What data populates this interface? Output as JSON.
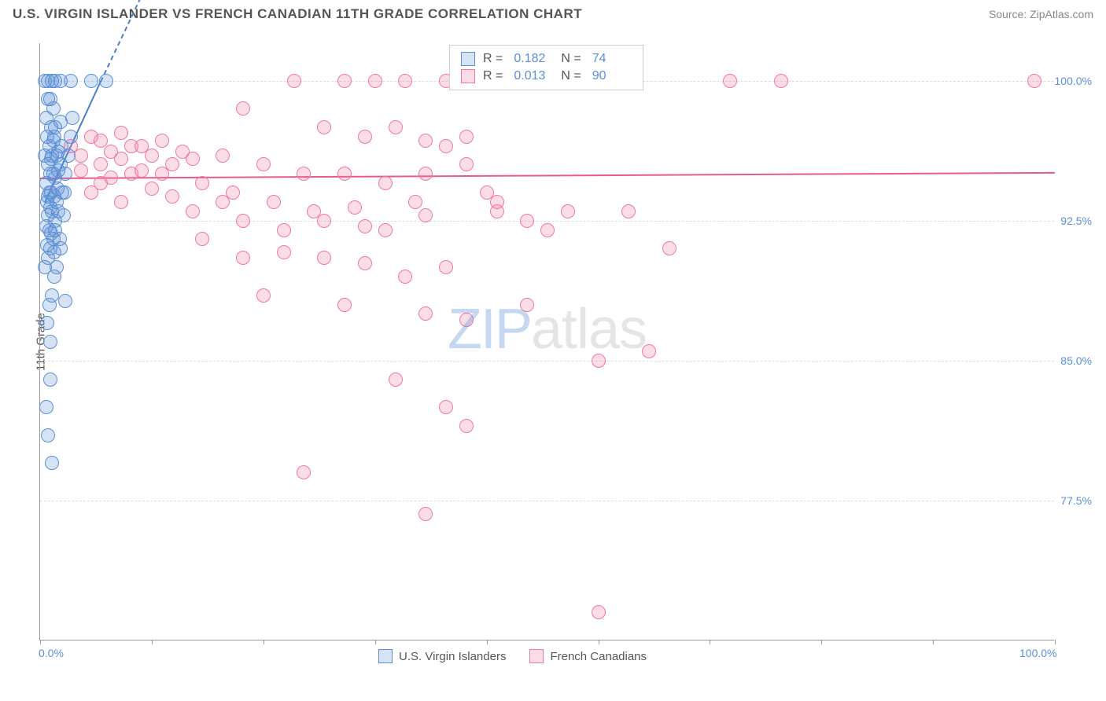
{
  "header": {
    "title": "U.S. VIRGIN ISLANDER VS FRENCH CANADIAN 11TH GRADE CORRELATION CHART",
    "source": "Source: ZipAtlas.com"
  },
  "chart": {
    "type": "scatter",
    "ylabel": "11th Grade",
    "xlim": [
      0,
      100
    ],
    "ylim": [
      70,
      102
    ],
    "yticks": [
      77.5,
      85.0,
      92.5,
      100.0
    ],
    "ytick_labels": [
      "77.5%",
      "85.0%",
      "92.5%",
      "100.0%"
    ],
    "xticks": [
      0,
      11,
      22,
      33,
      44,
      55,
      66,
      77,
      88,
      100
    ],
    "xtick_labels": {
      "0": "0.0%",
      "100": "100.0%"
    },
    "grid_color": "#dddddd",
    "axis_color": "#999999",
    "background_color": "#ffffff",
    "marker_radius": 9,
    "series": {
      "usvi": {
        "name": "U.S. Virgin Islanders",
        "fill": "rgba(91,143,214,0.25)",
        "stroke": "#5b8fd6",
        "R": "0.182",
        "N": "74",
        "trend": {
          "x1": 0.5,
          "y1": 93.5,
          "x2": 6,
          "y2": 100,
          "dashed_extend": true,
          "color": "#4a7fc8"
        },
        "points": [
          [
            0.5,
            100
          ],
          [
            0.8,
            100
          ],
          [
            1.2,
            100
          ],
          [
            1.5,
            100
          ],
          [
            2.0,
            100
          ],
          [
            3.0,
            100
          ],
          [
            5.0,
            100
          ],
          [
            6.5,
            100
          ],
          [
            0.8,
            99
          ],
          [
            1.0,
            99
          ],
          [
            1.3,
            98.5
          ],
          [
            0.6,
            98
          ],
          [
            1.1,
            97.5
          ],
          [
            0.7,
            97
          ],
          [
            1.4,
            97
          ],
          [
            0.9,
            96.5
          ],
          [
            0.5,
            96
          ],
          [
            1.2,
            96
          ],
          [
            1.6,
            96
          ],
          [
            1.8,
            96.2
          ],
          [
            0.8,
            95.5
          ],
          [
            1.0,
            95
          ],
          [
            1.3,
            95
          ],
          [
            1.5,
            94.8
          ],
          [
            0.6,
            94.5
          ],
          [
            0.9,
            94
          ],
          [
            1.1,
            94
          ],
          [
            1.4,
            93.8
          ],
          [
            0.7,
            93.5
          ],
          [
            1.0,
            93.2
          ],
          [
            1.2,
            93
          ],
          [
            0.8,
            92.8
          ],
          [
            1.5,
            92.5
          ],
          [
            0.6,
            92.2
          ],
          [
            0.9,
            92
          ],
          [
            1.1,
            91.8
          ],
          [
            1.3,
            91.5
          ],
          [
            0.7,
            91.2
          ],
          [
            1.0,
            91
          ],
          [
            1.4,
            90.8
          ],
          [
            0.8,
            90.5
          ],
          [
            0.5,
            90
          ],
          [
            1.2,
            88.5
          ],
          [
            2.5,
            88.2
          ],
          [
            3.0,
            97
          ],
          [
            1.8,
            93
          ],
          [
            2.2,
            94
          ],
          [
            2.0,
            91
          ],
          [
            1.6,
            90
          ],
          [
            1.0,
            86
          ],
          [
            0.6,
            82.5
          ],
          [
            0.8,
            81
          ],
          [
            1.2,
            79.5
          ],
          [
            1.5,
            97.5
          ],
          [
            2.8,
            96
          ],
          [
            2.0,
            95.5
          ],
          [
            1.7,
            94.2
          ],
          [
            2.3,
            92.8
          ],
          [
            1.9,
            91.5
          ],
          [
            1.4,
            89.5
          ],
          [
            2.5,
            95
          ],
          [
            3.2,
            98
          ],
          [
            0.7,
            87
          ],
          [
            1.0,
            84
          ],
          [
            1.3,
            96.8
          ],
          [
            1.6,
            93.5
          ],
          [
            0.9,
            88
          ],
          [
            2.1,
            96.5
          ],
          [
            1.8,
            95.2
          ],
          [
            2.4,
            94
          ],
          [
            1.1,
            95.8
          ],
          [
            0.8,
            93.8
          ],
          [
            1.5,
            92
          ],
          [
            2.0,
            97.8
          ]
        ]
      },
      "fc": {
        "name": "French Canadians",
        "fill": "rgba(240,120,160,0.25)",
        "stroke": "#f078a0",
        "R": "0.013",
        "N": "90",
        "trend": {
          "x1": 0,
          "y1": 94.8,
          "x2": 100,
          "y2": 95.1,
          "color": "#e85a8a"
        },
        "points": [
          [
            3,
            96.5
          ],
          [
            4,
            96
          ],
          [
            5,
            97
          ],
          [
            6,
            95.5
          ],
          [
            7,
            96.2
          ],
          [
            8,
            95.8
          ],
          [
            9,
            96.5
          ],
          [
            10,
            95.2
          ],
          [
            11,
            96
          ],
          [
            12,
            96.8
          ],
          [
            13,
            95.5
          ],
          [
            14,
            96.2
          ],
          [
            8,
            97.2
          ],
          [
            10,
            96.5
          ],
          [
            12,
            95
          ],
          [
            6,
            96.8
          ],
          [
            15,
            95.8
          ],
          [
            25,
            100
          ],
          [
            30,
            100
          ],
          [
            33,
            100
          ],
          [
            36,
            100
          ],
          [
            40,
            100
          ],
          [
            46,
            100
          ],
          [
            68,
            100
          ],
          [
            73,
            100
          ],
          [
            98,
            100
          ],
          [
            20,
            98.5
          ],
          [
            28,
            97.5
          ],
          [
            32,
            97
          ],
          [
            35,
            97.5
          ],
          [
            38,
            96.8
          ],
          [
            42,
            97
          ],
          [
            40,
            96.5
          ],
          [
            18,
            96
          ],
          [
            22,
            95.5
          ],
          [
            26,
            95
          ],
          [
            30,
            95
          ],
          [
            34,
            94.5
          ],
          [
            38,
            95
          ],
          [
            42,
            95.5
          ],
          [
            45,
            93.5
          ],
          [
            15,
            93
          ],
          [
            18,
            93.5
          ],
          [
            20,
            92.5
          ],
          [
            24,
            92
          ],
          [
            28,
            92.5
          ],
          [
            32,
            92.2
          ],
          [
            38,
            92.8
          ],
          [
            45,
            93
          ],
          [
            48,
            92.5
          ],
          [
            52,
            93
          ],
          [
            58,
            93
          ],
          [
            16,
            91.5
          ],
          [
            20,
            90.5
          ],
          [
            24,
            90.8
          ],
          [
            28,
            90.5
          ],
          [
            32,
            90.2
          ],
          [
            36,
            89.5
          ],
          [
            40,
            90
          ],
          [
            22,
            88.5
          ],
          [
            30,
            88
          ],
          [
            38,
            87.5
          ],
          [
            42,
            87.2
          ],
          [
            48,
            88
          ],
          [
            35,
            84
          ],
          [
            40,
            82.5
          ],
          [
            42,
            81.5
          ],
          [
            55,
            85
          ],
          [
            60,
            85.5
          ],
          [
            26,
            79
          ],
          [
            38,
            76.8
          ],
          [
            55,
            71.5
          ],
          [
            5,
            94
          ],
          [
            8,
            93.5
          ],
          [
            6,
            94.5
          ],
          [
            9,
            95
          ],
          [
            11,
            94.2
          ],
          [
            4,
            95.2
          ],
          [
            7,
            94.8
          ],
          [
            13,
            93.8
          ],
          [
            16,
            94.5
          ],
          [
            19,
            94
          ],
          [
            23,
            93.5
          ],
          [
            27,
            93
          ],
          [
            31,
            93.2
          ],
          [
            34,
            92
          ],
          [
            37,
            93.5
          ],
          [
            44,
            94
          ],
          [
            50,
            92
          ],
          [
            62,
            91
          ]
        ]
      }
    },
    "legend_top": [
      {
        "swatch_fill": "rgba(91,143,214,0.25)",
        "swatch_stroke": "#5b8fd6",
        "R": "0.182",
        "N": "74"
      },
      {
        "swatch_fill": "rgba(240,120,160,0.25)",
        "swatch_stroke": "#f078a0",
        "R": "0.013",
        "N": "90"
      }
    ],
    "legend_bottom": [
      {
        "swatch_fill": "rgba(91,143,214,0.25)",
        "swatch_stroke": "#5b8fd6",
        "label": "U.S. Virgin Islanders"
      },
      {
        "swatch_fill": "rgba(240,120,160,0.25)",
        "swatch_stroke": "#f078a0",
        "label": "French Canadians"
      }
    ],
    "watermark": {
      "part1": "ZIP",
      "part2": "atlas"
    }
  }
}
